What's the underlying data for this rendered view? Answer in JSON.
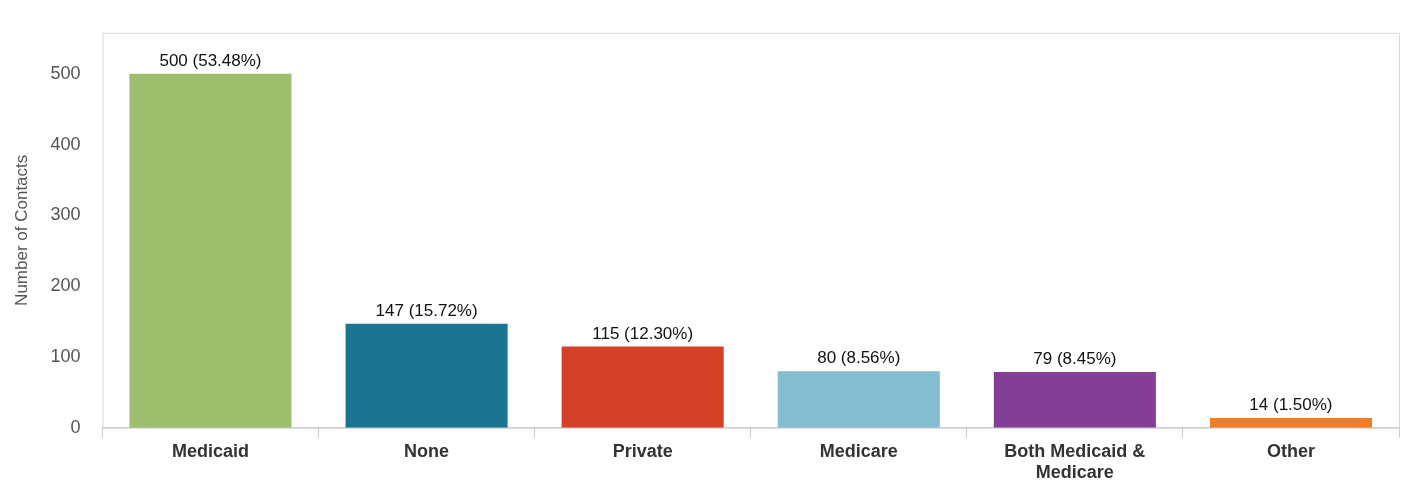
{
  "chart_data": {
    "type": "bar",
    "ylabel": "Number of Contacts",
    "categories": [
      "Medicaid",
      "None",
      "Private",
      "Medicare",
      "Both Medicaid & Medicare",
      "Other"
    ],
    "values": [
      500,
      147,
      115,
      80,
      79,
      14
    ],
    "colors": [
      "#9fbe6e",
      "#1a7590",
      "#d24128",
      "#84bdd0",
      "#843f94",
      "#f47c22"
    ],
    "value_labels": [
      "500 (53.48%)",
      "147 (15.72%)",
      "115 (12.30%)",
      "80 (8.56%)",
      "79 (8.45%)",
      "14 (1.50%)"
    ],
    "ylim": [
      0,
      558
    ],
    "yticks": [
      0,
      100,
      200,
      300,
      400,
      500
    ],
    "grid": false,
    "legend": false
  }
}
